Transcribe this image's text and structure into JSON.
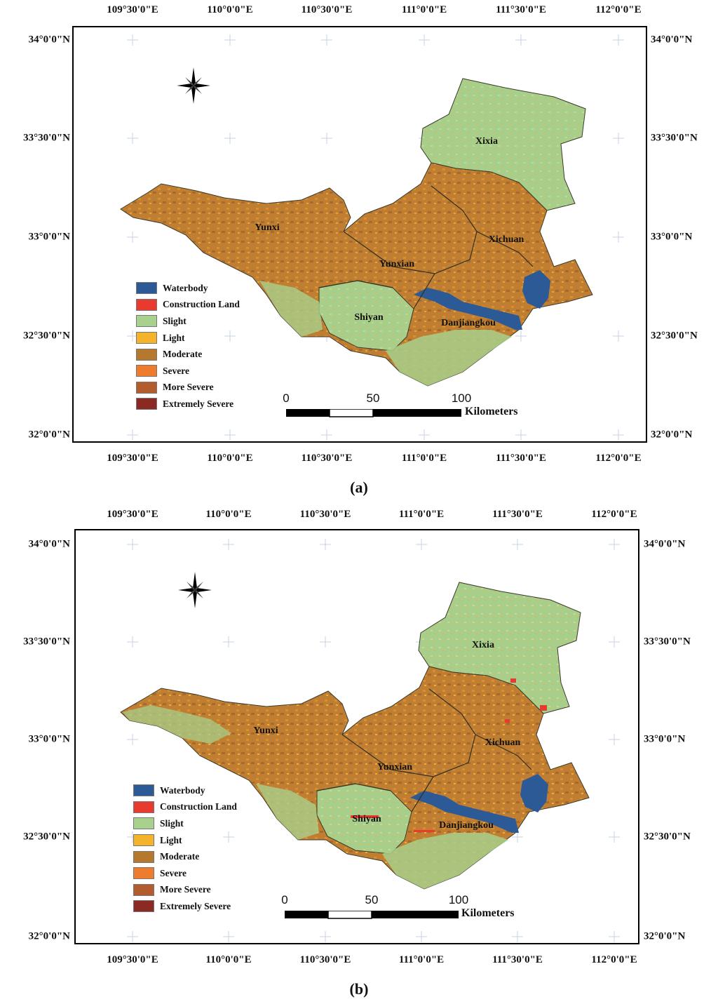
{
  "panels": [
    {
      "id": "a",
      "label_open": "(",
      "label_letter": "a",
      "label_close": ")"
    },
    {
      "id": "b",
      "label_open": "(",
      "label_letter": "b",
      "label_close": ")"
    }
  ],
  "axes": {
    "longitudes": [
      "109°30'0\"E",
      "110°0'0\"E",
      "110°30'0\"E",
      "111°0'0\"E",
      "111°30'0\"E",
      "112°0'0\"E"
    ],
    "latitudes": [
      "34°0'0\"N",
      "33°30'0\"N",
      "33°0'0\"N",
      "32°30'0\"N",
      "32°0'0\"N"
    ]
  },
  "places": [
    "Xixia",
    "Yunxi",
    "Xichuan",
    "Yunxian",
    "Shiyan",
    "Danjiangkou"
  ],
  "legend": [
    {
      "label": "Waterbody",
      "color": "#2b5a96"
    },
    {
      "label": "Construction Land",
      "color": "#e83a2e"
    },
    {
      "label": "Slight",
      "color": "#a9d18e"
    },
    {
      "label": "Light",
      "color": "#f4b32a"
    },
    {
      "label": "Moderate",
      "color": "#b5782d"
    },
    {
      "label": "Severe",
      "color": "#ef7b2c"
    },
    {
      "label": "More Severe",
      "color": "#b35c2e"
    },
    {
      "label": "Extremely Severe",
      "color": "#8b2a23"
    }
  ],
  "scale": {
    "ticks": [
      "0",
      "50",
      "100"
    ],
    "unit": "Kilometers"
  },
  "colors": {
    "frame": "#000000",
    "graticule": "#c9d3e3",
    "boundary": "#3a3a2a"
  }
}
